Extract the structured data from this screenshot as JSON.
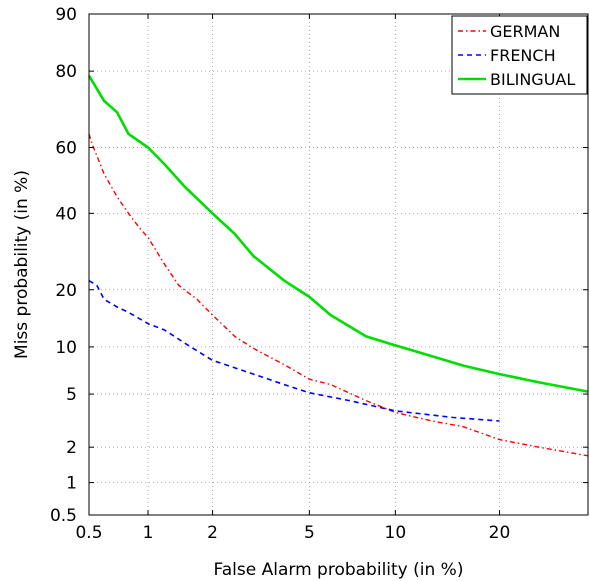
{
  "chart_data": {
    "type": "line",
    "title": "",
    "xlabel": "False Alarm probability (in %)",
    "ylabel": "Miss probability (in %)",
    "x_scale": "probit",
    "y_scale": "probit",
    "xlim": [
      0.5,
      32
    ],
    "ylim": [
      0.5,
      90
    ],
    "x_ticks": [
      0.5,
      1,
      2,
      5,
      10,
      20
    ],
    "x_tick_labels": [
      "0.5",
      "1",
      "2",
      "5",
      "10",
      "20"
    ],
    "y_ticks": [
      0.5,
      1,
      2,
      5,
      10,
      20,
      40,
      60,
      80,
      90
    ],
    "y_tick_labels": [
      "0.5",
      "1",
      "2",
      "5",
      "10",
      "20",
      "40",
      "60",
      "80",
      "90"
    ],
    "grid": true,
    "legend_position": "top-right",
    "series": [
      {
        "name": "GERMAN",
        "color": "#ff0000",
        "dash": "dash-dot",
        "x": [
          0.5,
          0.52,
          0.6,
          0.7,
          0.8,
          0.9,
          1.0,
          1.2,
          1.4,
          1.7,
          2.0,
          2.5,
          3.0,
          4.0,
          5.0,
          6.0,
          8.0,
          10.0,
          13.0,
          16.0,
          20.0,
          25.0,
          32.0
        ],
        "y": [
          64,
          61,
          52,
          45,
          40,
          36,
          33,
          26,
          21,
          18,
          15,
          11.5,
          9.8,
          7.8,
          6.3,
          5.8,
          4.5,
          3.7,
          3.2,
          2.9,
          2.3,
          2.0,
          1.7
        ]
      },
      {
        "name": "FRENCH",
        "color": "#0000ff",
        "dash": "dashed",
        "x": [
          0.5,
          0.55,
          0.6,
          0.7,
          0.8,
          1.0,
          1.2,
          1.5,
          2.0,
          3.0,
          4.0,
          5.0,
          7.0,
          10.0,
          15.0,
          20.0
        ],
        "y": [
          22,
          21,
          18,
          16.5,
          15.5,
          13.5,
          12.5,
          10.5,
          8.3,
          6.8,
          5.8,
          5.1,
          4.5,
          3.8,
          3.4,
          3.2
        ]
      },
      {
        "name": "BILINGUAL",
        "color": "#00dd00",
        "dash": "solid",
        "x": [
          0.5,
          0.55,
          0.6,
          0.7,
          0.8,
          1.0,
          1.2,
          1.5,
          2.0,
          2.5,
          3.0,
          4.0,
          5.0,
          6.0,
          8.0,
          10.0,
          13.0,
          16.0,
          20.0,
          25.0,
          32.0
        ],
        "y": [
          79,
          76,
          73,
          70,
          64,
          60,
          55,
          48,
          40,
          34,
          28,
          22,
          18.5,
          15,
          11.5,
          10.2,
          8.8,
          7.7,
          6.8,
          6.0,
          5.2
        ]
      }
    ]
  }
}
